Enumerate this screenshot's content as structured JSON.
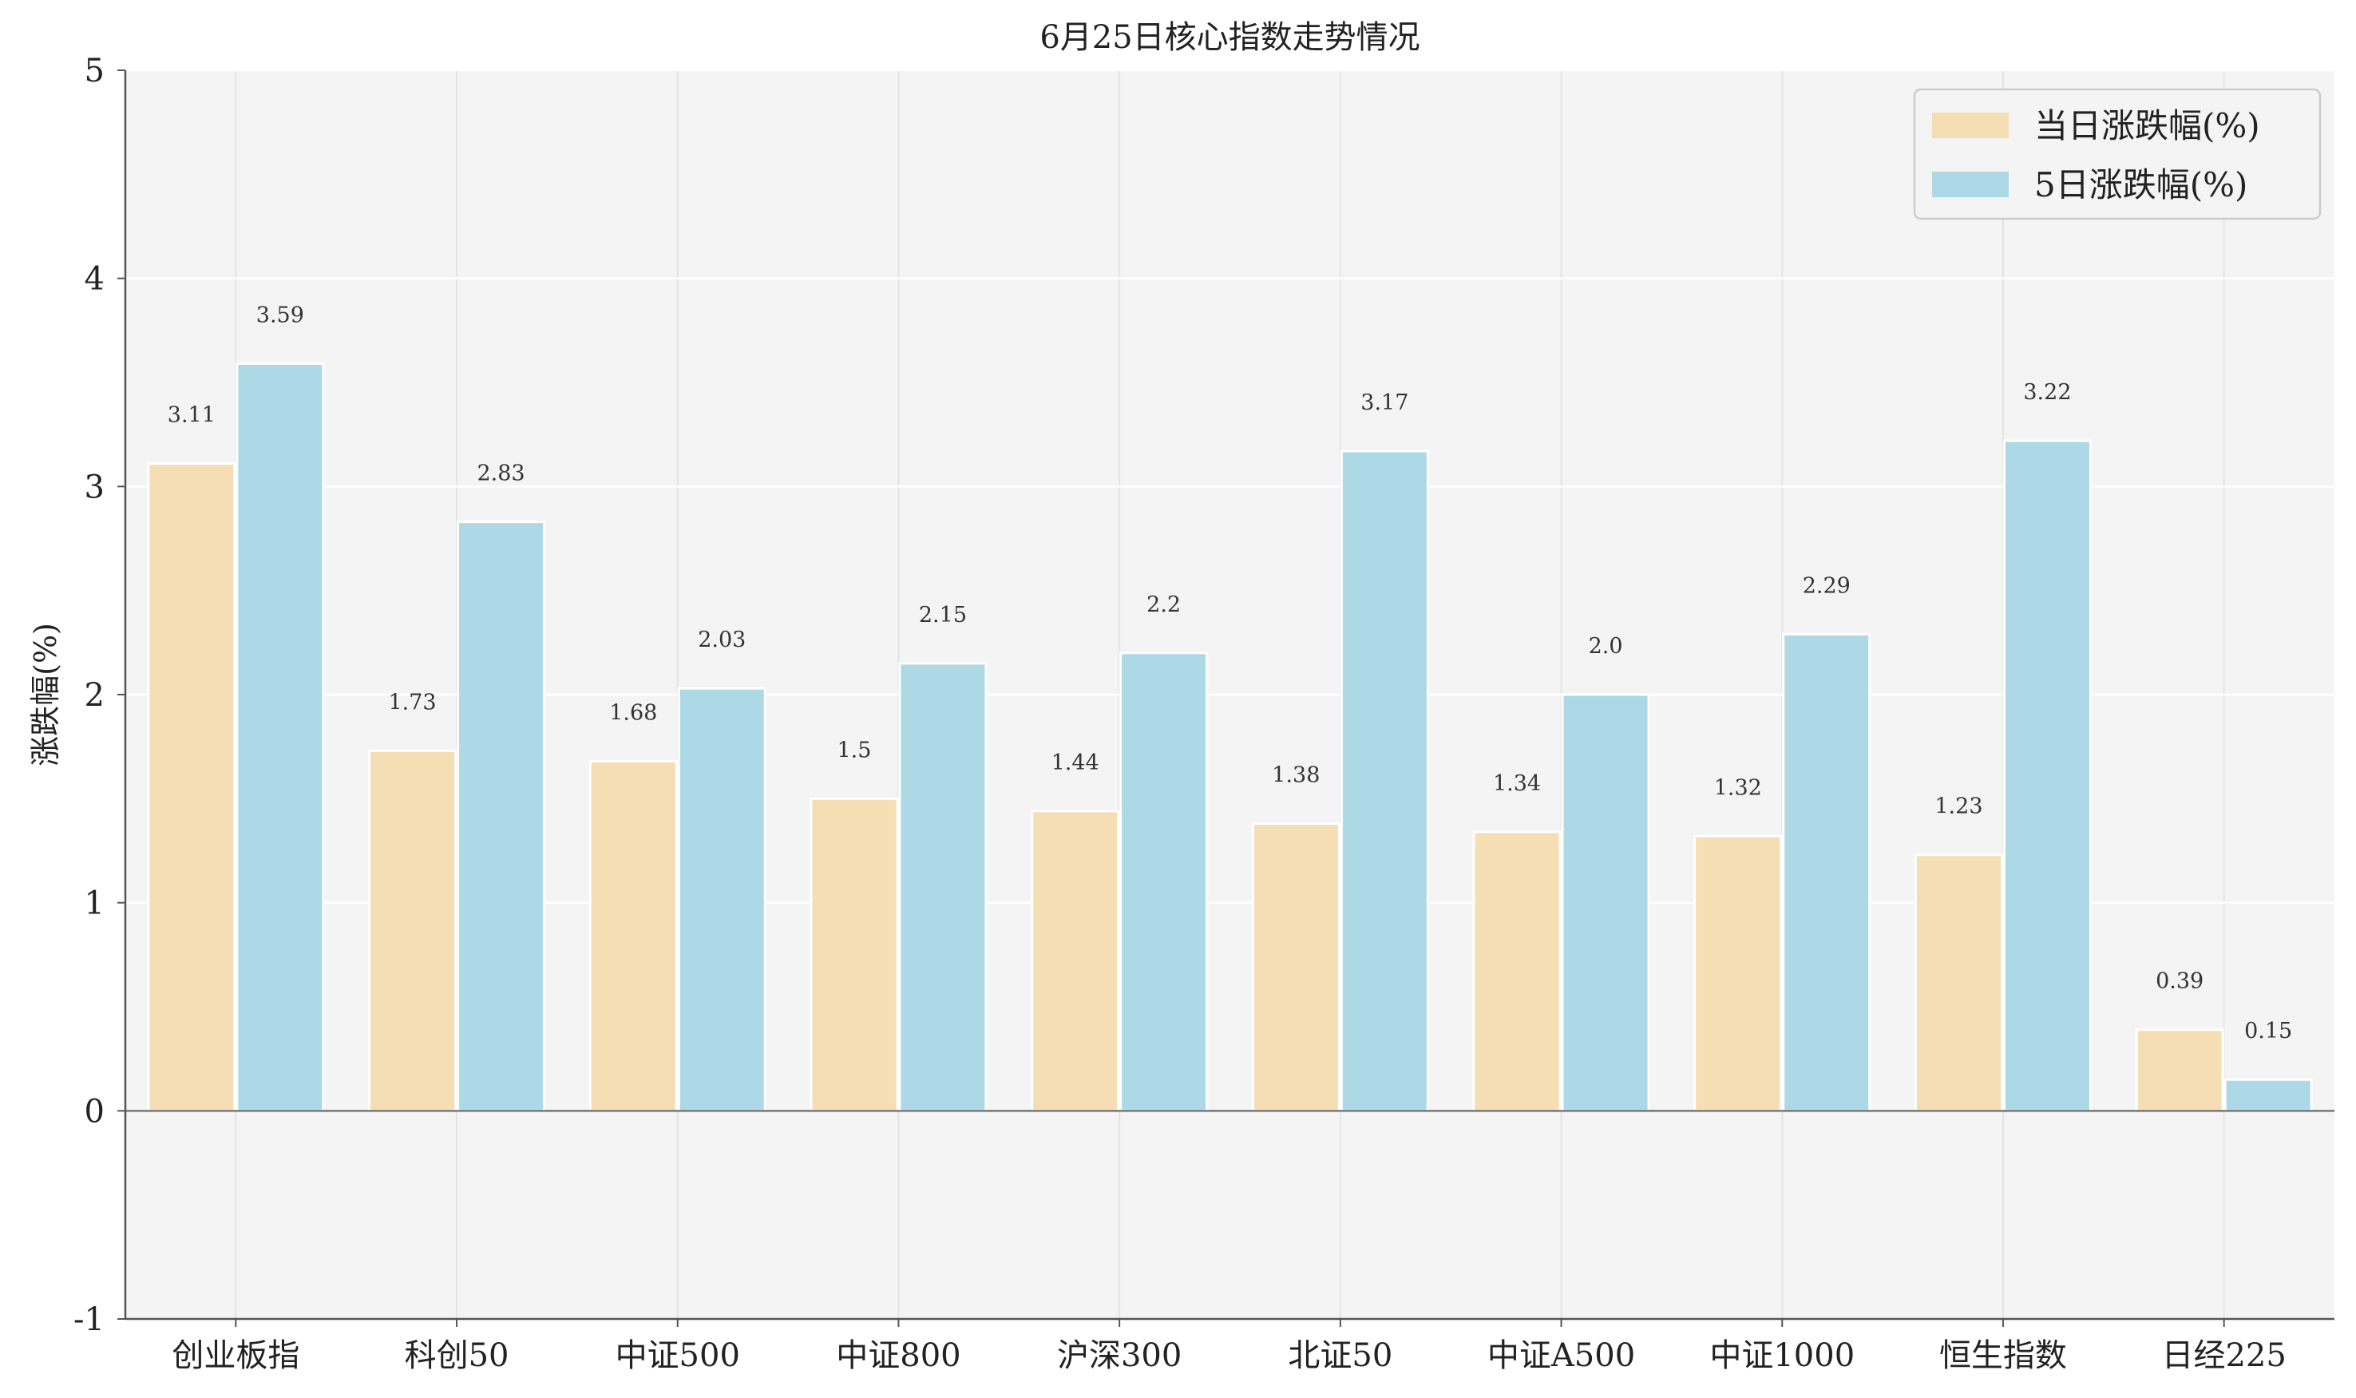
{
  "chart_data": {
    "type": "bar",
    "title": "6月25日核心指数走势情况",
    "xlabel": "",
    "ylabel": "涨跌幅(%)",
    "ylim": [
      -1,
      5
    ],
    "yticks": [
      -1,
      0,
      1,
      2,
      3,
      4,
      5
    ],
    "grid": true,
    "legend_position": "top-right",
    "categories": [
      "创业板指",
      "科创50",
      "中证500",
      "中证800",
      "沪深300",
      "北证50",
      "中证A500",
      "中证1000",
      "恒生指数",
      "日经225"
    ],
    "series": [
      {
        "name": "当日涨跌幅(%)",
        "color": "#F5DEB3",
        "values": [
          3.11,
          1.73,
          1.68,
          1.5,
          1.44,
          1.38,
          1.34,
          1.32,
          1.23,
          0.39
        ],
        "labels": [
          "3.11",
          "1.73",
          "1.68",
          "1.5",
          "1.44",
          "1.38",
          "1.34",
          "1.32",
          "1.23",
          "0.39"
        ]
      },
      {
        "name": "5日涨跌幅(%)",
        "color": "#ADD8E6",
        "values": [
          3.59,
          2.83,
          2.03,
          2.15,
          2.2,
          3.17,
          2.0,
          2.29,
          3.22,
          0.15
        ],
        "labels": [
          "3.59",
          "2.83",
          "2.03",
          "2.15",
          "2.2",
          "3.17",
          "2.0",
          "2.29",
          "3.22",
          "0.15"
        ]
      }
    ]
  },
  "colors": {
    "plot_background": "#F4F4F4",
    "grid": "#FFFFFF",
    "vertical_grid": "#E4E4E4",
    "axis": "#555555",
    "zero_line": "#777777"
  }
}
